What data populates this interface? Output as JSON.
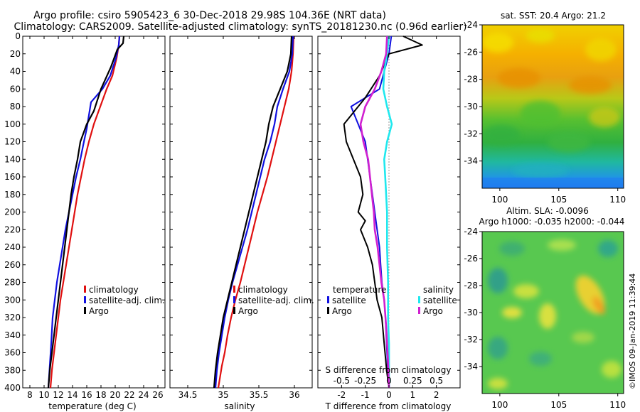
{
  "title_line1": "Argo profile: csiro 5905423_6 30-Dec-2018 29.98S 104.36E (NRT data)",
  "title_line2": "Climatology: CARS2009. Satellite-adjusted climatology: synTS_20181230.nc (0.96d earlier)",
  "watermark": "©IMOS 09-Jan-2019 11:39:44",
  "colors": {
    "climatology": "#e01010",
    "satellite": "#1010e0",
    "argo": "#000000",
    "sal_sat": "#20e8ee",
    "sal_argo": "#d020d0"
  },
  "chart_data": [
    {
      "type": "line",
      "panel": "temperature",
      "xlabel": "temperature (deg C)",
      "ylabel": "",
      "xlim": [
        7,
        27
      ],
      "ylim": [
        400,
        0
      ],
      "xticks": [
        8,
        10,
        12,
        14,
        16,
        18,
        20,
        22,
        24,
        26
      ],
      "yticks": [
        0,
        20,
        40,
        60,
        80,
        100,
        120,
        140,
        160,
        180,
        200,
        220,
        240,
        260,
        280,
        300,
        320,
        340,
        360,
        380,
        400
      ],
      "legend": [
        "climatology",
        "satellite-adj. clim.",
        "Argo"
      ],
      "series": [
        {
          "name": "climatology",
          "color": "#e01010",
          "x": [
            20.6,
            20.5,
            20.2,
            19.6,
            18.8,
            17.9,
            17.0,
            16.3,
            15.7,
            15.2,
            14.7,
            14.3,
            13.9,
            13.5,
            13.1,
            12.7,
            12.3,
            12.0,
            11.7,
            11.4,
            11.1,
            10.9
          ],
          "y": [
            0,
            10,
            25,
            45,
            60,
            80,
            100,
            120,
            140,
            160,
            180,
            200,
            220,
            240,
            260,
            280,
            300,
            320,
            340,
            360,
            380,
            400
          ]
        },
        {
          "name": "satellite-adj. clim.",
          "color": "#1010e0",
          "x": [
            20.6,
            20.5,
            20.1,
            19.3,
            18.2,
            16.6,
            16.3,
            16.0,
            15.6,
            15.1,
            14.5,
            14.0,
            13.5,
            13.0,
            12.6,
            12.2,
            11.8,
            11.5,
            11.2,
            11.0,
            10.8,
            10.6
          ],
          "y": [
            0,
            10,
            25,
            45,
            60,
            75,
            90,
            105,
            120,
            140,
            160,
            180,
            200,
            220,
            240,
            260,
            280,
            300,
            320,
            350,
            375,
            400
          ]
        },
        {
          "name": "Argo",
          "color": "#000000",
          "x": [
            21.2,
            21.1,
            20.3,
            19.4,
            18.0,
            17.0,
            16.0,
            15.1,
            14.7,
            14.2,
            13.8,
            13.5,
            13.2,
            12.9,
            12.6,
            12.3,
            12.0,
            11.7,
            11.4,
            11.1,
            10.8,
            10.6
          ],
          "y": [
            0,
            8,
            15,
            35,
            60,
            85,
            100,
            120,
            140,
            160,
            180,
            200,
            220,
            240,
            260,
            280,
            300,
            320,
            340,
            360,
            380,
            400
          ]
        }
      ]
    },
    {
      "type": "line",
      "panel": "salinity",
      "xlabel": "salinity",
      "ylabel": "",
      "xlim": [
        34.25,
        36.25
      ],
      "ylim": [
        400,
        0
      ],
      "xticks": [
        34.5,
        35,
        35.5,
        36
      ],
      "xticklabels": [
        "34.5",
        "35",
        "35.5",
        "36"
      ],
      "legend": [
        "climatology",
        "satellite-adj. clim.",
        "Argo"
      ],
      "series": [
        {
          "name": "climatology",
          "color": "#e01010",
          "x": [
            35.99,
            35.98,
            35.96,
            35.92,
            35.86,
            35.8,
            35.74,
            35.68,
            35.62,
            35.55,
            35.48,
            35.42,
            35.36,
            35.3,
            35.24,
            35.17,
            35.11,
            35.06,
            35.02,
            34.98,
            34.95,
            34.93
          ],
          "y": [
            0,
            20,
            40,
            60,
            80,
            100,
            120,
            140,
            160,
            180,
            200,
            220,
            240,
            260,
            280,
            300,
            320,
            340,
            360,
            375,
            390,
            400
          ]
        },
        {
          "name": "satellite-adj. clim.",
          "color": "#1010e0",
          "x": [
            35.98,
            35.97,
            35.93,
            35.84,
            35.76,
            35.72,
            35.66,
            35.58,
            35.52,
            35.46,
            35.4,
            35.34,
            35.27,
            35.2,
            35.13,
            35.07,
            35.02,
            34.98,
            34.94,
            34.91,
            34.89
          ],
          "y": [
            0,
            20,
            40,
            60,
            80,
            100,
            120,
            140,
            160,
            180,
            200,
            220,
            240,
            260,
            280,
            300,
            320,
            340,
            360,
            380,
            400
          ]
        },
        {
          "name": "Argo",
          "color": "#000000",
          "x": [
            35.96,
            35.95,
            35.9,
            35.8,
            35.7,
            35.64,
            35.6,
            35.54,
            35.48,
            35.42,
            35.36,
            35.3,
            35.24,
            35.18,
            35.12,
            35.06,
            35.0,
            34.96,
            34.92,
            34.89,
            34.87
          ],
          "y": [
            0,
            20,
            40,
            60,
            80,
            100,
            120,
            140,
            160,
            180,
            200,
            220,
            240,
            260,
            280,
            300,
            320,
            340,
            360,
            380,
            400
          ]
        }
      ]
    },
    {
      "type": "line",
      "panel": "differences",
      "xlabel": "T difference from climatology",
      "xlabel2": "S difference from climatology",
      "xlim": [
        -3,
        3
      ],
      "ylim": [
        400,
        0
      ],
      "xticks": [
        -2,
        -1,
        0,
        1,
        2
      ],
      "s_xticks": [
        -0.5,
        -0.25,
        0,
        0.25,
        0.5
      ],
      "s_xticklabels": [
        "-0.5",
        "-0.25",
        "0",
        "0.25",
        "0.5"
      ],
      "legend_temperature": {
        "title": "temperature",
        "items": [
          "satellite",
          "Argo"
        ]
      },
      "legend_salinity": {
        "title": "salinity",
        "items": [
          "satellite",
          "Argo"
        ]
      },
      "series": [
        {
          "name": "T satellite",
          "color": "#1010e0",
          "x": [
            0.1,
            0.0,
            -0.2,
            -0.4,
            -1.0,
            -1.6,
            -1.3,
            -1.0,
            -0.9,
            -0.8,
            -0.7,
            -0.6,
            -0.5,
            -0.4,
            -0.35,
            -0.3,
            -0.2,
            -0.15,
            -0.1,
            -0.05,
            0.0
          ],
          "y": [
            0,
            20,
            40,
            60,
            70,
            80,
            100,
            120,
            140,
            160,
            180,
            200,
            220,
            240,
            260,
            280,
            300,
            320,
            350,
            380,
            400
          ]
        },
        {
          "name": "T Argo",
          "color": "#000000",
          "x": [
            0.6,
            1.4,
            0.0,
            -0.4,
            -1.0,
            -1.9,
            -1.8,
            -1.5,
            -1.2,
            -1.1,
            -1.3,
            -1.0,
            -1.2,
            -0.9,
            -0.7,
            -0.6,
            -0.5,
            -0.3,
            -0.2,
            -0.1,
            0.0
          ],
          "y": [
            0,
            10,
            20,
            45,
            70,
            100,
            120,
            140,
            160,
            180,
            200,
            210,
            220,
            240,
            260,
            280,
            300,
            320,
            350,
            380,
            400
          ]
        },
        {
          "name": "S satellite",
          "color": "#20e8ee",
          "x": [
            0.0,
            -0.02,
            -0.05,
            -0.06,
            -0.02,
            0.03,
            -0.02,
            -0.05,
            -0.04,
            -0.03,
            -0.02,
            -0.02,
            -0.01,
            -0.01,
            0.0,
            0.0,
            0.0
          ],
          "y": [
            0,
            20,
            40,
            60,
            80,
            100,
            120,
            140,
            160,
            180,
            200,
            240,
            280,
            320,
            350,
            380,
            400
          ]
        },
        {
          "name": "S Argo",
          "color": "#d020d0",
          "x": [
            -0.02,
            -0.03,
            -0.08,
            -0.15,
            -0.25,
            -0.3,
            -0.27,
            -0.22,
            -0.2,
            -0.18,
            -0.16,
            -0.15,
            -0.12,
            -0.1,
            -0.08,
            -0.05,
            -0.03,
            -0.01,
            0.0
          ],
          "y": [
            0,
            20,
            40,
            60,
            80,
            100,
            120,
            140,
            160,
            180,
            200,
            220,
            240,
            260,
            280,
            300,
            330,
            370,
            400
          ]
        }
      ]
    },
    {
      "type": "heatmap",
      "panel": "sst_map",
      "title": "sat. SST: 20.4 Argo: 21.2",
      "xlim": [
        98.5,
        110.5
      ],
      "ylim": [
        -36,
        -24
      ],
      "xticks": [
        100,
        105,
        110
      ],
      "yticks": [
        -24,
        -26,
        -28,
        -30,
        -32,
        -34
      ]
    },
    {
      "type": "heatmap",
      "panel": "sla_map",
      "title": "Altim. SLA: -0.0096",
      "subtitle": "Argo h1000: -0.035 h2000: -0.044",
      "xlim": [
        98.5,
        110.5
      ],
      "ylim": [
        -36,
        -24
      ],
      "xticks": [
        100,
        105,
        110
      ],
      "yticks": [
        -24,
        -26,
        -28,
        -30,
        -32,
        -34
      ]
    }
  ]
}
